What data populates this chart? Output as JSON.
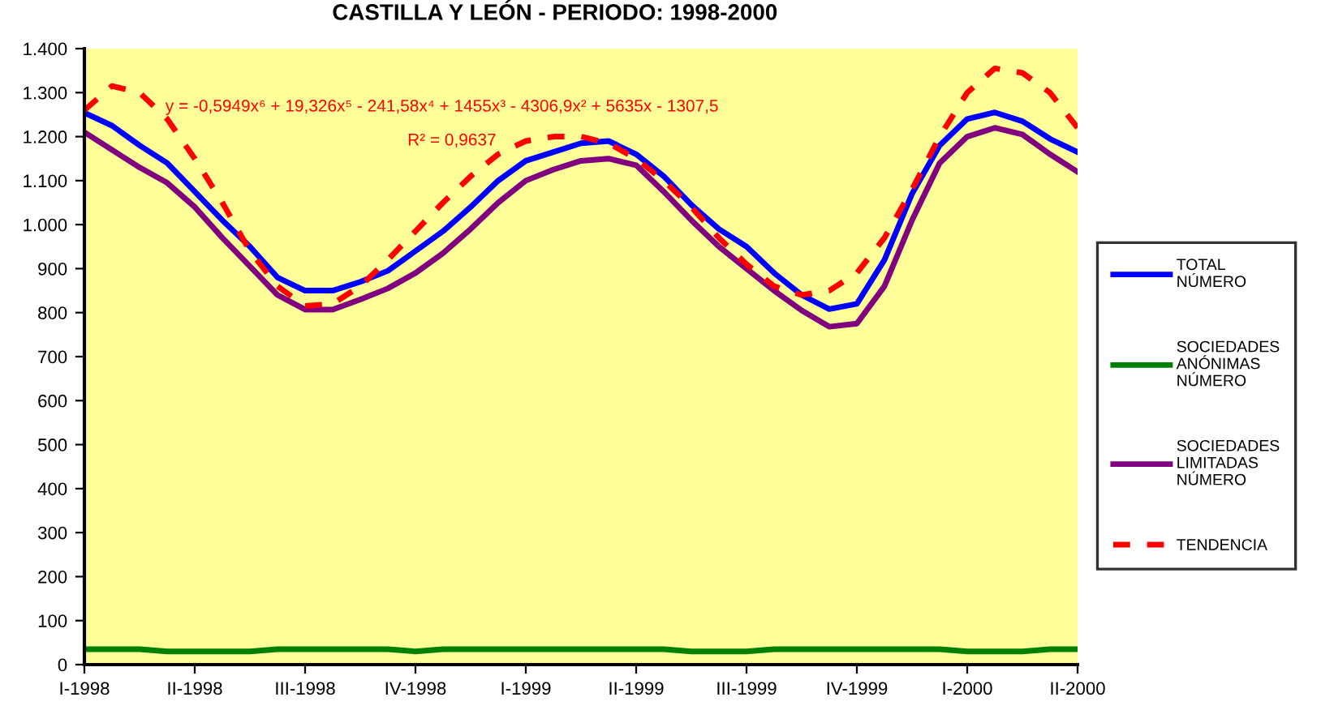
{
  "chart_data": {
    "type": "line",
    "title": "CASTILLA Y LEÓN - PERIODO: 1998-2000",
    "categories": [
      "I-1998",
      null,
      null,
      null,
      "II-1998",
      null,
      null,
      null,
      "III-1998",
      null,
      null,
      null,
      "IV-1998",
      null,
      null,
      null,
      "I-1999",
      null,
      null,
      null,
      "II-1999",
      null,
      null,
      null,
      "III-1999",
      null,
      null,
      null,
      "IV-1999",
      null,
      null,
      null,
      "I-2000",
      null,
      null,
      null,
      "II-2000"
    ],
    "series": [
      {
        "name": "TOTAL\nNÚMERO",
        "color": "#0000ff",
        "values": [
          1254,
          1225,
          1180,
          1140,
          1075,
          1010,
          950,
          880,
          850,
          850,
          870,
          895,
          940,
          985,
          1040,
          1100,
          1145,
          1165,
          1185,
          1190,
          1160,
          1110,
          1045,
          990,
          950,
          890,
          840,
          808,
          820,
          920,
          1070,
          1180,
          1240,
          1255,
          1235,
          1195,
          1165
        ]
      },
      {
        "name": "SOCIEDADES\nANÓNIMAS\nNÚMERO",
        "color": "#008000",
        "values": [
          35,
          35,
          35,
          30,
          30,
          30,
          30,
          35,
          35,
          35,
          35,
          35,
          30,
          35,
          35,
          35,
          35,
          35,
          35,
          35,
          35,
          35,
          30,
          30,
          30,
          35,
          35,
          35,
          35,
          35,
          35,
          35,
          30,
          30,
          30,
          35,
          35
        ]
      },
      {
        "name": "SOCIEDADES\nLIMITADAS\nNÚMERO",
        "color": "#800080",
        "values": [
          1210,
          1170,
          1130,
          1095,
          1040,
          970,
          905,
          840,
          807,
          807,
          830,
          855,
          890,
          935,
          990,
          1050,
          1100,
          1125,
          1145,
          1150,
          1135,
          1075,
          1010,
          950,
          900,
          850,
          805,
          768,
          775,
          860,
          1010,
          1140,
          1200,
          1220,
          1205,
          1160,
          1120
        ]
      },
      {
        "name": "TENDENCIA",
        "color": "#ff0000",
        "line_style": "dashed",
        "values": [
          1260,
          1315,
          1300,
          1240,
          1150,
          1050,
          940,
          860,
          815,
          820,
          860,
          920,
          985,
          1050,
          1110,
          1160,
          1190,
          1200,
          1200,
          1185,
          1150,
          1100,
          1040,
          970,
          910,
          860,
          840,
          850,
          890,
          970,
          1080,
          1200,
          1300,
          1355,
          1345,
          1300,
          1220
        ]
      }
    ],
    "ylim": [
      0,
      1400
    ],
    "yticks": [
      0,
      100,
      200,
      300,
      400,
      500,
      600,
      700,
      800,
      900,
      {
        "value": 1000,
        "label": "1.000"
      },
      {
        "value": 1100,
        "label": "1.100"
      },
      {
        "value": 1200,
        "label": "1.200"
      },
      {
        "value": 1300,
        "label": "1.300"
      },
      {
        "value": 1400,
        "label": "1.400"
      }
    ],
    "annotations": [
      "y = -0,5949x⁶ + 19,326x⁵ - 241,58x⁴ + 1455x³ - 4306,9x² + 5635x - 1307,5",
      "R² = 0,9637"
    ],
    "grid": false,
    "legend": "right",
    "marker": "none"
  }
}
